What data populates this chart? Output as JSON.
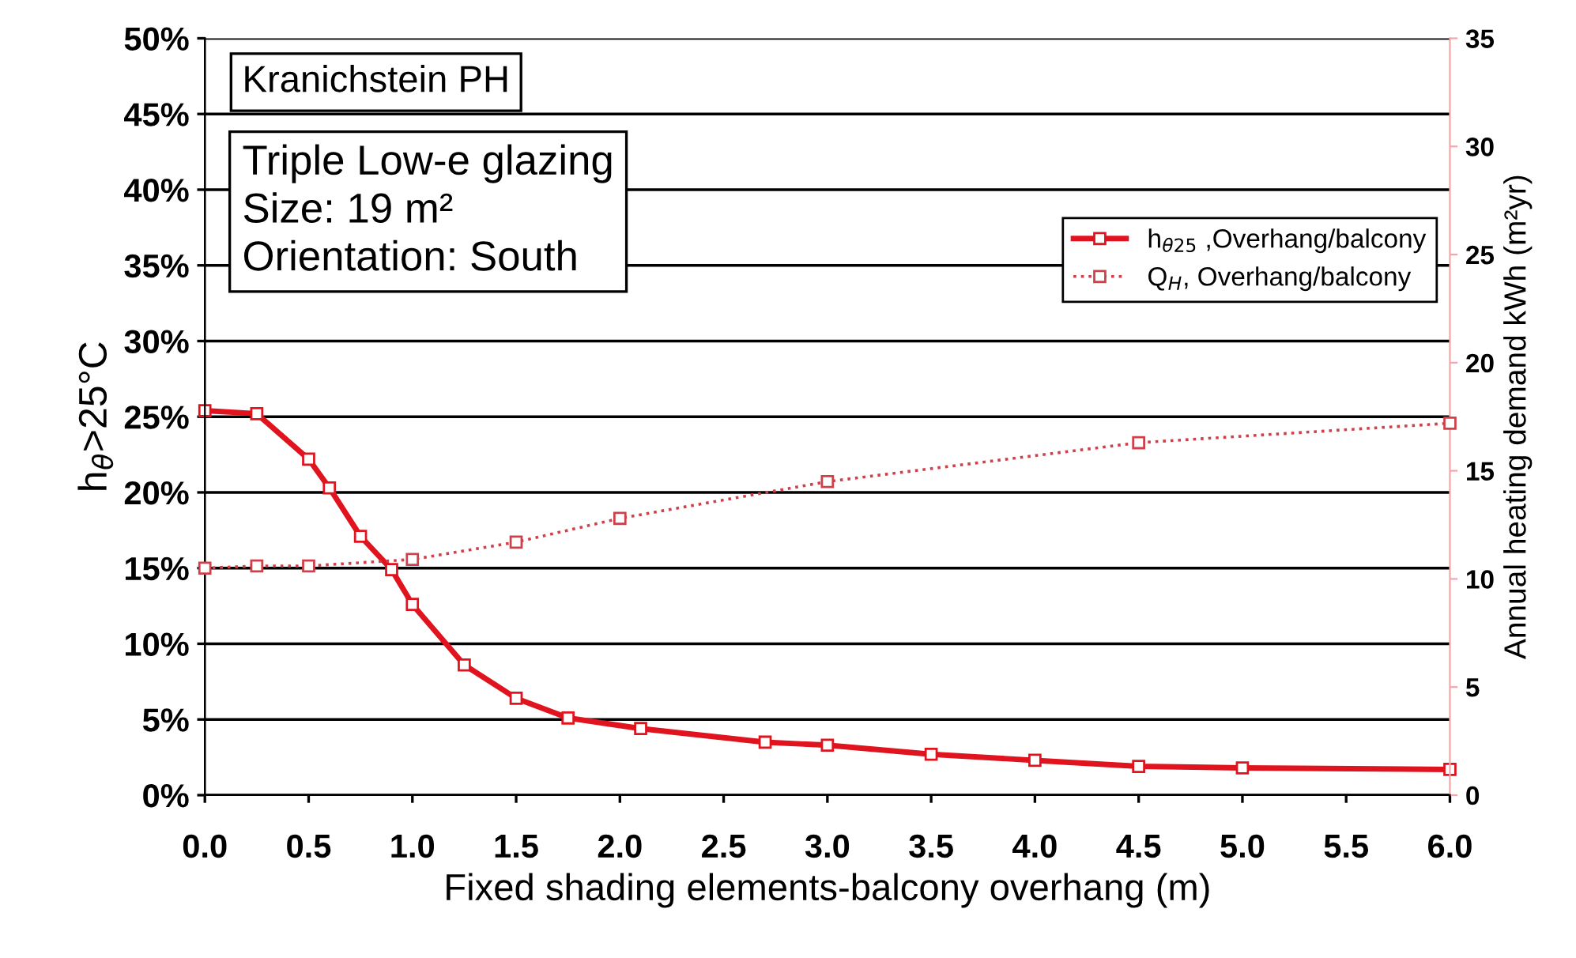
{
  "chart_data": {
    "type": "line",
    "xlabel": "Fixed shading elements-balcony overhang (m)",
    "ylabel": "h$_{θ}$>25°C",
    "y2label": "Annual heating demand kWh (m²yr)",
    "annotations": [
      "Kranichstein PH",
      "Triple Low-e glazing\nSize: 19 m²\nOrientation: South"
    ],
    "series": [
      {
        "name": "h$_{θ25}$ ,Overhang/balcony",
        "color": "#e0141e",
        "line_style": "solid",
        "marker": "square",
        "x": [
          0,
          0.25,
          0.5,
          0.6,
          0.75,
          0.9,
          1.0,
          1.25,
          1.5,
          1.75,
          2.1,
          2.7,
          3.0,
          3.5,
          4.0,
          4.5,
          5.0,
          6.0
        ],
        "values": [
          25.4,
          25.2,
          22.2,
          20.3,
          17.1,
          14.9,
          12.6,
          8.6,
          6.4,
          5.1,
          4.4,
          3.5,
          3.3,
          2.7,
          2.3,
          1.9,
          1.8,
          1.7
        ]
      },
      {
        "name": "Q$_{H}$, Overhang/balcony",
        "color": "#d0404a",
        "line_style": "dotted",
        "marker": "square",
        "axis": "y2",
        "x": [
          0,
          0.25,
          0.5,
          1.0,
          1.5,
          2.0,
          3.0,
          4.5,
          6.0
        ],
        "values": [
          10.5,
          10.6,
          10.6,
          10.9,
          11.7,
          12.8,
          14.5,
          16.3,
          17.2
        ]
      }
    ],
    "xlim": [
      0,
      6
    ],
    "xticks": [
      {
        "value": 0,
        "label": "0.0"
      },
      {
        "value": 0.5,
        "label": "0.5"
      },
      {
        "value": 1,
        "label": "1.0"
      },
      {
        "value": 1.5,
        "label": "1.5"
      },
      {
        "value": 2,
        "label": "2.0"
      },
      {
        "value": 2.5,
        "label": "2.5"
      },
      {
        "value": 3,
        "label": "3.0"
      },
      {
        "value": 3.5,
        "label": "3.5"
      },
      {
        "value": 4,
        "label": "4.0"
      },
      {
        "value": 4.5,
        "label": "4.5"
      },
      {
        "value": 5,
        "label": "5.0"
      },
      {
        "value": 5.5,
        "label": "5.5"
      },
      {
        "value": 6,
        "label": "6.0"
      }
    ],
    "ylim": [
      0,
      50
    ],
    "yticks": [
      {
        "value": 0,
        "label": "0%"
      },
      {
        "value": 5,
        "label": "5%"
      },
      {
        "value": 10,
        "label": "10%"
      },
      {
        "value": 15,
        "label": "15%"
      },
      {
        "value": 20,
        "label": "20%"
      },
      {
        "value": 25,
        "label": "25%"
      },
      {
        "value": 30,
        "label": "30%"
      },
      {
        "value": 35,
        "label": "35%"
      },
      {
        "value": 40,
        "label": "40%"
      },
      {
        "value": 45,
        "label": "45%"
      },
      {
        "value": 50,
        "label": "50%"
      }
    ],
    "y2lim": [
      0,
      35
    ],
    "y2ticks": [
      0,
      5,
      10,
      15,
      20,
      25,
      30,
      35
    ],
    "grid": "y",
    "legend": "upper right"
  }
}
